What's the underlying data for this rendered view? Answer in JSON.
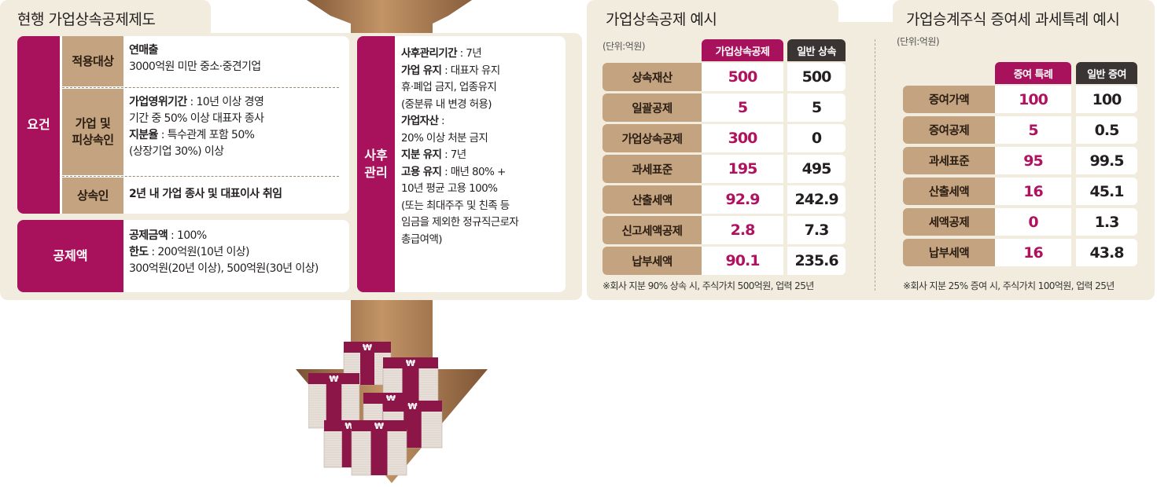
{
  "left_panel": {
    "title": "현행 가업상속공제제도",
    "requirements": {
      "label": "요건",
      "rows": [
        {
          "label": "적용대상",
          "lines": [
            {
              "bold": "연매출",
              "text": ""
            },
            {
              "bold": "",
              "text": "3000억원 미만 중소·중견기업"
            }
          ]
        },
        {
          "label": "가업 및\n피상속인",
          "lines": [
            {
              "bold": "가업영위기간",
              "text": " : 10년 이상 경영"
            },
            {
              "bold": "",
              "text": "기간 중 50% 이상 대표자 종사"
            },
            {
              "bold": "지분율",
              "text": " : 특수관계 포함 50%"
            },
            {
              "bold": "",
              "text": "(상장기업 30%) 이상"
            }
          ]
        },
        {
          "label": "상속인",
          "lines": [
            {
              "bold": "2년 내 가업 종사 및 대표이사 취임",
              "text": ""
            }
          ]
        }
      ]
    },
    "deduction": {
      "label": "공제액",
      "lines": [
        {
          "bold": "공제금액",
          "text": " : 100%"
        },
        {
          "bold": "한도",
          "text": " : 200억원(10년 이상)"
        },
        {
          "bold": "",
          "text": "300억원(20년 이상), 500억원(30년 이상)"
        }
      ]
    },
    "post_management": {
      "label": "사후\n관리",
      "lines": [
        {
          "bold": "사후관리기간",
          "text": " : 7년"
        },
        {
          "bold": "가업 유지",
          "text": " : 대표자 유지"
        },
        {
          "bold": "",
          "text": "휴·폐업 금지, 업종유지"
        },
        {
          "bold": "",
          "text": "(중분류 내 변경 허용)"
        },
        {
          "bold": "가업자산",
          "text": " :"
        },
        {
          "bold": "",
          "text": "20% 이상 처분 금지"
        },
        {
          "bold": "지분 유지",
          "text": " : 7년"
        },
        {
          "bold": "고용 유지",
          "text": " : 매년 80% +"
        },
        {
          "bold": "",
          "text": "10년 평균 고용 100%"
        },
        {
          "bold": "",
          "text": "(또는 최대주주 및 친족 등"
        },
        {
          "bold": "",
          "text": "임금을 제외한 정규직근로자"
        },
        {
          "bold": "",
          "text": "총급여액)"
        }
      ]
    }
  },
  "table1": {
    "title": "가업상속공제 예시",
    "unit": "(단위:억원)",
    "col_headers": [
      "가업상속공제",
      "일반 상속"
    ],
    "rows": [
      {
        "label": "상속재산",
        "a": "500",
        "b": "500"
      },
      {
        "label": "일괄공제",
        "a": "5",
        "b": "5"
      },
      {
        "label": "가업상속공제",
        "a": "300",
        "b": "0"
      },
      {
        "label": "과세표준",
        "a": "195",
        "b": "495"
      },
      {
        "label": "산출세액",
        "a": "92.9",
        "b": "242.9"
      },
      {
        "label": "신고세액공제",
        "a": "2.8",
        "b": "7.3"
      },
      {
        "label": "납부세액",
        "a": "90.1",
        "b": "235.6"
      }
    ],
    "note": "※회사 지분 90% 상속 시, 주식가치 500억원, 업력 25년"
  },
  "table2": {
    "title": "가업승계주식 증여세 과세특례 예시",
    "unit": "(단위:억원)",
    "col_headers": [
      "증여 특례",
      "일반 증여"
    ],
    "rows": [
      {
        "label": "증여가액",
        "a": "100",
        "b": "100"
      },
      {
        "label": "증여공제",
        "a": "5",
        "b": "0.5"
      },
      {
        "label": "과세표준",
        "a": "95",
        "b": "99.5"
      },
      {
        "label": "산출세액",
        "a": "16",
        "b": "45.1"
      },
      {
        "label": "세액공제",
        "a": "0",
        "b": "1.3"
      },
      {
        "label": "납부세액",
        "a": "16",
        "b": "43.8"
      }
    ],
    "note": "※회사 지분 25% 증여 시, 주식가치 100억원, 업력 25년"
  },
  "colors": {
    "magenta": "#a8125c",
    "tan": "#c3a380",
    "panel": "#f2ecdf",
    "dark_header": "#3a3432",
    "arrow": "#a8764a",
    "money": "#8d1648"
  },
  "illustration": {
    "icon": "won-money-stacks-icon",
    "arrow": "down-arrow-icon"
  }
}
